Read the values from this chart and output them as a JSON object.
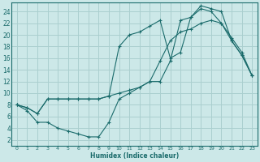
{
  "xlabel": "Humidex (Indice chaleur)",
  "bg_color": "#cce8e8",
  "grid_color": "#aacfcf",
  "line_color": "#1a6b6b",
  "xlim": [
    -0.5,
    23.5
  ],
  "ylim": [
    1,
    25.5
  ],
  "yticks": [
    2,
    4,
    6,
    8,
    10,
    12,
    14,
    16,
    18,
    20,
    22,
    24
  ],
  "xticks": [
    0,
    1,
    2,
    3,
    4,
    5,
    6,
    7,
    8,
    9,
    10,
    11,
    12,
    13,
    14,
    15,
    16,
    17,
    18,
    19,
    20,
    21,
    22,
    23
  ],
  "line1_x": [
    0,
    1,
    2,
    3,
    4,
    5,
    6,
    7,
    8,
    9,
    10,
    11,
    12,
    13,
    14,
    15,
    16,
    17,
    18,
    19,
    20,
    21,
    22,
    23
  ],
  "line1_y": [
    8,
    7,
    5,
    5,
    4,
    3.5,
    3,
    2.5,
    2.5,
    5,
    9,
    10,
    11,
    12,
    15.5,
    19,
    20.5,
    21,
    22,
    22.5,
    22,
    19.5,
    17,
    13
  ],
  "line2_x": [
    0,
    1,
    2,
    3,
    4,
    5,
    6,
    7,
    8,
    9,
    10,
    11,
    12,
    13,
    14,
    15,
    16,
    17,
    18,
    19,
    20,
    21,
    22,
    23
  ],
  "line2_y": [
    8,
    7.5,
    6.5,
    9,
    9,
    9,
    9,
    9,
    9,
    9.5,
    10,
    10.5,
    11,
    12,
    12,
    15.5,
    22.5,
    23,
    25,
    24.5,
    24,
    19,
    16.5,
    13
  ],
  "line3_x": [
    0,
    1,
    2,
    3,
    4,
    5,
    6,
    7,
    8,
    9,
    10,
    11,
    12,
    13,
    14,
    15,
    16,
    17,
    18,
    19,
    20,
    21,
    22,
    23
  ],
  "line3_y": [
    8,
    7.5,
    6.5,
    9,
    9,
    9,
    9,
    9,
    9,
    9.5,
    18,
    20,
    20.5,
    21.5,
    22.5,
    16,
    17,
    23,
    24.5,
    24,
    22,
    19,
    16.5,
    13
  ]
}
